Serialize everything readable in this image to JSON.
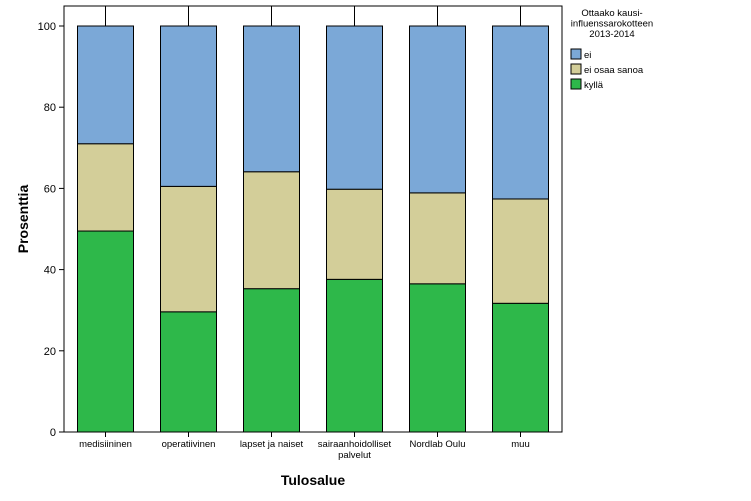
{
  "chart_data": {
    "type": "bar",
    "stacked": true,
    "categories": [
      [
        "medisiininen"
      ],
      [
        "operatiivinen"
      ],
      [
        "lapset ja naiset"
      ],
      [
        "sairaanhoidolliset",
        "palvelut"
      ],
      [
        "Nordlab Oulu"
      ],
      [
        "muu"
      ]
    ],
    "series": [
      {
        "name": "kyllä",
        "values": [
          49.5,
          29.6,
          35.3,
          37.6,
          36.5,
          31.7
        ],
        "color": "#2eb84a"
      },
      {
        "name": "ei osaa sanoa",
        "values": [
          21.5,
          30.9,
          28.8,
          22.2,
          22.4,
          25.7
        ],
        "color": "#d3ce99"
      },
      {
        "name": "ei",
        "values": [
          29.0,
          39.5,
          35.9,
          40.2,
          41.1,
          42.6
        ],
        "color": "#7ba8d7"
      }
    ],
    "xlabel": "Tulosalue",
    "ylabel": "Prosenttia",
    "ylim": [
      0,
      100
    ],
    "yticks": [
      0,
      20,
      40,
      60,
      80,
      100
    ],
    "grid": false,
    "legend": {
      "title": [
        "Ottaako kausi-",
        "influenssarokotteen",
        "2013-2014"
      ],
      "order": [
        "ei",
        "ei osaa sanoa",
        "kyllä"
      ],
      "placement": "top-right"
    }
  }
}
